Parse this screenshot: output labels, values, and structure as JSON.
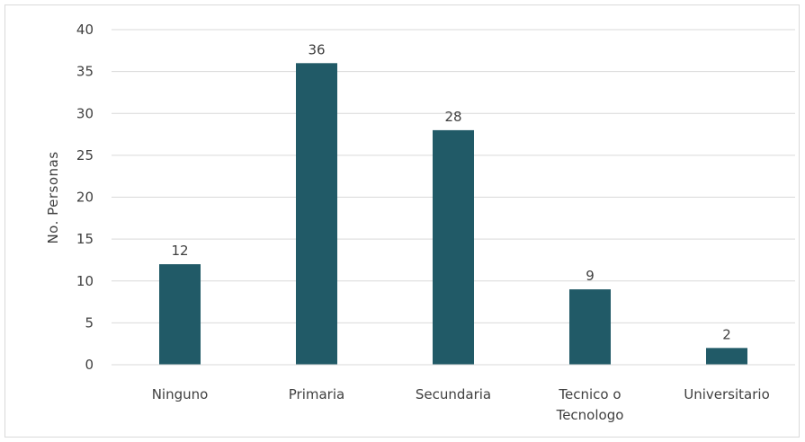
{
  "chart_data": {
    "type": "bar",
    "title": "",
    "xlabel": "",
    "ylabel": "No. Personas",
    "ylim": [
      0,
      40
    ],
    "yticks": [
      0,
      5,
      10,
      15,
      20,
      25,
      30,
      35,
      40
    ],
    "grid": true,
    "legend": "none",
    "bar_color": "#215a67",
    "categories": [
      [
        "Ninguno"
      ],
      [
        "Primaria"
      ],
      [
        "Secundaria"
      ],
      [
        "Tecnico o",
        "Tecnologo"
      ],
      [
        "Universitario"
      ]
    ],
    "values": [
      12,
      36,
      28,
      9,
      2
    ]
  }
}
